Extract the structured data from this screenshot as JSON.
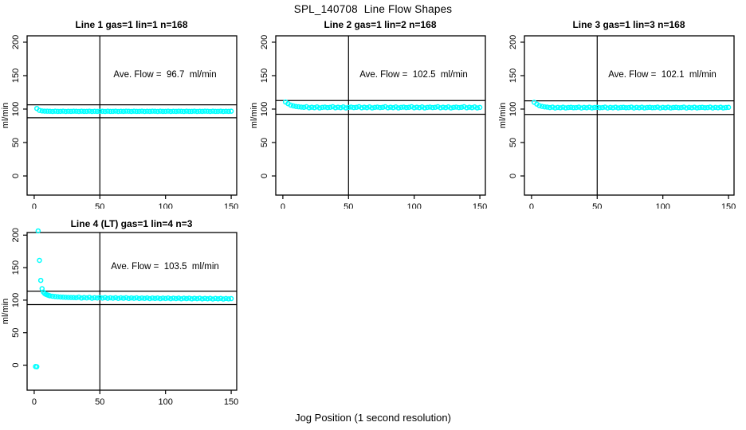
{
  "page": {
    "title": "SPL_140708  Line Flow Shapes",
    "xlabel": "Jog Position (1 second resolution)"
  },
  "colors": {
    "point": "#00ffff",
    "axis": "#000000",
    "background": "#ffffff"
  },
  "chart_data": [
    {
      "type": "scatter",
      "title": "Line 1 gas=1 lin=1 n=168",
      "ylabel": "ml/min",
      "annotation": "Ave. Flow =  96.7  ml/min",
      "ave_flow_ml_min": 96.7,
      "n": 168,
      "ref_lines": [
        106.4,
        87.0
      ],
      "vline_x": 50,
      "x_ticks": [
        0,
        50,
        100,
        150
      ],
      "y_ticks": [
        0,
        50,
        100,
        150,
        200
      ],
      "x_range": [
        -5.4,
        154.2
      ],
      "y_range": [
        -28.6,
        209.5
      ],
      "points": [
        [
          2,
          100.9
        ],
        [
          4,
          98.1
        ],
        [
          6,
          97.2
        ],
        [
          8,
          96.9
        ],
        [
          10,
          96.8
        ],
        [
          12,
          96.7
        ],
        [
          14,
          96.4
        ],
        [
          16,
          96.8
        ],
        [
          18,
          96.5
        ],
        [
          20,
          96.6
        ],
        [
          22,
          96.9
        ],
        [
          24,
          96.4
        ],
        [
          26,
          96.7
        ],
        [
          28,
          96.5
        ],
        [
          30,
          96.8
        ],
        [
          32,
          96.7
        ],
        [
          34,
          96.4
        ],
        [
          36,
          96.8
        ],
        [
          38,
          96.5
        ],
        [
          40,
          96.6
        ],
        [
          42,
          96.9
        ],
        [
          44,
          96.4
        ],
        [
          46,
          96.7
        ],
        [
          48,
          96.5
        ],
        [
          50,
          96.8
        ],
        [
          52,
          96.7
        ],
        [
          54,
          96.4
        ],
        [
          56,
          96.8
        ],
        [
          58,
          96.5
        ],
        [
          60,
          96.6
        ],
        [
          62,
          96.9
        ],
        [
          64,
          96.4
        ],
        [
          66,
          96.7
        ],
        [
          68,
          96.5
        ],
        [
          70,
          96.8
        ],
        [
          72,
          96.7
        ],
        [
          74,
          96.4
        ],
        [
          76,
          96.8
        ],
        [
          78,
          96.5
        ],
        [
          80,
          96.6
        ],
        [
          82,
          96.9
        ],
        [
          84,
          96.4
        ],
        [
          86,
          96.7
        ],
        [
          88,
          96.5
        ],
        [
          90,
          96.8
        ],
        [
          92,
          96.7
        ],
        [
          94,
          96.4
        ],
        [
          96,
          96.8
        ],
        [
          98,
          96.5
        ],
        [
          100,
          96.6
        ],
        [
          102,
          96.9
        ],
        [
          104,
          96.4
        ],
        [
          106,
          96.7
        ],
        [
          108,
          96.5
        ],
        [
          110,
          96.8
        ],
        [
          112,
          96.7
        ],
        [
          114,
          96.4
        ],
        [
          116,
          96.8
        ],
        [
          118,
          96.5
        ],
        [
          120,
          96.6
        ],
        [
          122,
          96.9
        ],
        [
          124,
          96.4
        ],
        [
          126,
          96.7
        ],
        [
          128,
          96.5
        ],
        [
          130,
          96.8
        ],
        [
          132,
          96.7
        ],
        [
          134,
          96.4
        ],
        [
          136,
          96.8
        ],
        [
          138,
          96.5
        ],
        [
          140,
          96.6
        ],
        [
          142,
          96.9
        ],
        [
          144,
          96.4
        ],
        [
          146,
          96.7
        ],
        [
          148,
          96.5
        ],
        [
          150,
          96.8
        ]
      ]
    },
    {
      "type": "scatter",
      "title": "Line 2 gas=1 lin=2 n=168",
      "ylabel": "ml/min",
      "annotation": "Ave. Flow =  102.5  ml/min",
      "ave_flow_ml_min": 102.5,
      "n": 168,
      "ref_lines": [
        112.75,
        92.25
      ],
      "vline_x": 50,
      "x_ticks": [
        0,
        50,
        100,
        150
      ],
      "y_ticks": [
        0,
        50,
        100,
        150,
        200
      ],
      "x_range": [
        -5.4,
        154.2
      ],
      "y_range": [
        -28.6,
        209.5
      ],
      "points": [
        [
          2,
          110.6
        ],
        [
          4,
          108.1
        ],
        [
          6,
          105.9
        ],
        [
          8,
          104.7
        ],
        [
          10,
          103.9
        ],
        [
          12,
          103.4
        ],
        [
          14,
          103.0
        ],
        [
          16,
          102.6
        ],
        [
          18,
          103.5
        ],
        [
          20,
          101.9
        ],
        [
          22,
          102.8
        ],
        [
          24,
          102.1
        ],
        [
          26,
          103.2
        ],
        [
          28,
          101.7
        ],
        [
          30,
          102.5
        ],
        [
          32,
          103.0
        ],
        [
          34,
          102.2
        ],
        [
          36,
          102.6
        ],
        [
          38,
          103.5
        ],
        [
          40,
          101.9
        ],
        [
          42,
          102.8
        ],
        [
          44,
          102.1
        ],
        [
          46,
          103.2
        ],
        [
          48,
          101.7
        ],
        [
          50,
          102.5
        ],
        [
          52,
          103.0
        ],
        [
          54,
          102.2
        ],
        [
          56,
          102.6
        ],
        [
          58,
          103.5
        ],
        [
          60,
          101.9
        ],
        [
          62,
          102.8
        ],
        [
          64,
          102.1
        ],
        [
          66,
          103.2
        ],
        [
          68,
          101.7
        ],
        [
          70,
          102.5
        ],
        [
          72,
          103.0
        ],
        [
          74,
          102.2
        ],
        [
          76,
          102.6
        ],
        [
          78,
          103.5
        ],
        [
          80,
          101.9
        ],
        [
          82,
          102.8
        ],
        [
          84,
          102.1
        ],
        [
          86,
          103.2
        ],
        [
          88,
          101.7
        ],
        [
          90,
          102.5
        ],
        [
          92,
          103.0
        ],
        [
          94,
          102.2
        ],
        [
          96,
          102.6
        ],
        [
          98,
          103.5
        ],
        [
          100,
          101.9
        ],
        [
          102,
          102.8
        ],
        [
          104,
          102.1
        ],
        [
          106,
          103.2
        ],
        [
          108,
          101.7
        ],
        [
          110,
          102.5
        ],
        [
          112,
          103.0
        ],
        [
          114,
          102.2
        ],
        [
          116,
          102.6
        ],
        [
          118,
          103.5
        ],
        [
          120,
          101.9
        ],
        [
          122,
          102.8
        ],
        [
          124,
          102.1
        ],
        [
          126,
          103.2
        ],
        [
          128,
          101.7
        ],
        [
          130,
          102.5
        ],
        [
          132,
          103.0
        ],
        [
          134,
          102.2
        ],
        [
          136,
          102.6
        ],
        [
          138,
          103.5
        ],
        [
          140,
          101.9
        ],
        [
          142,
          102.8
        ],
        [
          144,
          102.1
        ],
        [
          146,
          103.2
        ],
        [
          148,
          101.7
        ],
        [
          150,
          102.5
        ]
      ]
    },
    {
      "type": "scatter",
      "title": "Line 3 gas=1 lin=3 n=168",
      "ylabel": "ml/min",
      "annotation": "Ave. Flow =  102.1  ml/min",
      "ave_flow_ml_min": 102.1,
      "n": 168,
      "ref_lines": [
        112.3,
        91.9
      ],
      "vline_x": 50,
      "x_ticks": [
        0,
        50,
        100,
        150
      ],
      "y_ticks": [
        0,
        50,
        100,
        150,
        200
      ],
      "x_range": [
        -5.4,
        154.2
      ],
      "y_range": [
        -28.6,
        209.5
      ],
      "points": [
        [
          2,
          110.1
        ],
        [
          4,
          107.4
        ],
        [
          6,
          105.1
        ],
        [
          8,
          104.0
        ],
        [
          10,
          103.3
        ],
        [
          12,
          102.9
        ],
        [
          14,
          102.2
        ],
        [
          16,
          102.9
        ],
        [
          18,
          101.6
        ],
        [
          20,
          102.5
        ],
        [
          22,
          101.9
        ],
        [
          24,
          102.8
        ],
        [
          26,
          101.7
        ],
        [
          28,
          102.3
        ],
        [
          30,
          102.6
        ],
        [
          32,
          102.0
        ],
        [
          34,
          102.2
        ],
        [
          36,
          102.9
        ],
        [
          38,
          101.6
        ],
        [
          40,
          102.5
        ],
        [
          42,
          101.9
        ],
        [
          44,
          102.8
        ],
        [
          46,
          101.7
        ],
        [
          48,
          102.3
        ],
        [
          50,
          102.6
        ],
        [
          52,
          102.0
        ],
        [
          54,
          102.2
        ],
        [
          56,
          102.9
        ],
        [
          58,
          101.6
        ],
        [
          60,
          102.5
        ],
        [
          62,
          101.9
        ],
        [
          64,
          102.8
        ],
        [
          66,
          101.7
        ],
        [
          68,
          102.3
        ],
        [
          70,
          102.6
        ],
        [
          72,
          102.0
        ],
        [
          74,
          102.2
        ],
        [
          76,
          102.9
        ],
        [
          78,
          101.6
        ],
        [
          80,
          102.5
        ],
        [
          82,
          101.9
        ],
        [
          84,
          102.8
        ],
        [
          86,
          101.7
        ],
        [
          88,
          102.3
        ],
        [
          90,
          102.6
        ],
        [
          92,
          102.0
        ],
        [
          94,
          102.2
        ],
        [
          96,
          102.9
        ],
        [
          98,
          101.6
        ],
        [
          100,
          102.5
        ],
        [
          102,
          101.9
        ],
        [
          104,
          102.8
        ],
        [
          106,
          101.7
        ],
        [
          108,
          102.3
        ],
        [
          110,
          102.6
        ],
        [
          112,
          102.0
        ],
        [
          114,
          102.2
        ],
        [
          116,
          102.9
        ],
        [
          118,
          101.6
        ],
        [
          120,
          102.5
        ],
        [
          122,
          101.9
        ],
        [
          124,
          102.8
        ],
        [
          126,
          101.7
        ],
        [
          128,
          102.3
        ],
        [
          130,
          102.6
        ],
        [
          132,
          102.0
        ],
        [
          134,
          102.2
        ],
        [
          136,
          102.9
        ],
        [
          138,
          101.6
        ],
        [
          140,
          102.5
        ],
        [
          142,
          101.9
        ],
        [
          144,
          102.8
        ],
        [
          146,
          101.7
        ],
        [
          148,
          102.3
        ],
        [
          150,
          102.6
        ]
      ]
    },
    {
      "type": "scatter",
      "title": "Line 4 (LT) gas=1 lin=4 n=3",
      "ylabel": "ml/min",
      "annotation": "Ave. Flow =  103.5  ml/min",
      "ave_flow_ml_min": 103.5,
      "n": 3,
      "ref_lines": [
        113.85,
        93.15
      ],
      "vline_x": 50,
      "x_ticks": [
        0,
        50,
        100,
        150
      ],
      "y_ticks": [
        0,
        50,
        100,
        150,
        200
      ],
      "x_range": [
        -5.4,
        154.2
      ],
      "y_range": [
        -38.5,
        204.0
      ],
      "points": [
        [
          1,
          -2.1
        ],
        [
          2,
          -2.4
        ],
        [
          3,
          206.5
        ],
        [
          4,
          161.2
        ],
        [
          5,
          130.4
        ],
        [
          6,
          117.6
        ],
        [
          7,
          112.4
        ],
        [
          8,
          110.1
        ],
        [
          9,
          108.9
        ],
        [
          10,
          108.0
        ],
        [
          11,
          107.3
        ],
        [
          12,
          106.7
        ],
        [
          14,
          106.0
        ],
        [
          16,
          105.5
        ],
        [
          18,
          105.1
        ],
        [
          20,
          104.8
        ],
        [
          22,
          104.6
        ],
        [
          24,
          104.4
        ],
        [
          26,
          104.2
        ],
        [
          28,
          104.1
        ],
        [
          30,
          104.0
        ],
        [
          32,
          103.8
        ],
        [
          34,
          104.6
        ],
        [
          36,
          103.2
        ],
        [
          38,
          104.1
        ],
        [
          40,
          103.4
        ],
        [
          42,
          104.3
        ],
        [
          44,
          102.9
        ],
        [
          46,
          103.8
        ],
        [
          48,
          103.3
        ],
        [
          50,
          104.1
        ],
        [
          52,
          103.1
        ],
        [
          54,
          103.9
        ],
        [
          56,
          102.8
        ],
        [
          58,
          103.6
        ],
        [
          60,
          103.0
        ],
        [
          62,
          103.8
        ],
        [
          64,
          102.7
        ],
        [
          66,
          103.5
        ],
        [
          68,
          102.9
        ],
        [
          70,
          103.7
        ],
        [
          72,
          102.6
        ],
        [
          74,
          103.4
        ],
        [
          76,
          102.8
        ],
        [
          78,
          103.5
        ],
        [
          80,
          102.5
        ],
        [
          82,
          103.3
        ],
        [
          84,
          102.7
        ],
        [
          86,
          103.4
        ],
        [
          88,
          102.4
        ],
        [
          90,
          103.2
        ],
        [
          92,
          102.6
        ],
        [
          94,
          103.3
        ],
        [
          96,
          102.3
        ],
        [
          98,
          103.1
        ],
        [
          100,
          102.5
        ],
        [
          102,
          103.2
        ],
        [
          104,
          102.2
        ],
        [
          106,
          103.0
        ],
        [
          108,
          102.4
        ],
        [
          110,
          103.1
        ],
        [
          112,
          102.1
        ],
        [
          114,
          102.9
        ],
        [
          116,
          102.3
        ],
        [
          118,
          103.0
        ],
        [
          120,
          102.0
        ],
        [
          122,
          102.8
        ],
        [
          124,
          102.2
        ],
        [
          126,
          102.9
        ],
        [
          128,
          101.9
        ],
        [
          130,
          102.7
        ],
        [
          132,
          102.1
        ],
        [
          134,
          102.8
        ],
        [
          136,
          101.8
        ],
        [
          138,
          102.6
        ],
        [
          140,
          102.0
        ],
        [
          142,
          102.7
        ],
        [
          144,
          101.7
        ],
        [
          146,
          102.5
        ],
        [
          148,
          101.9
        ],
        [
          150,
          102.3
        ]
      ]
    }
  ]
}
